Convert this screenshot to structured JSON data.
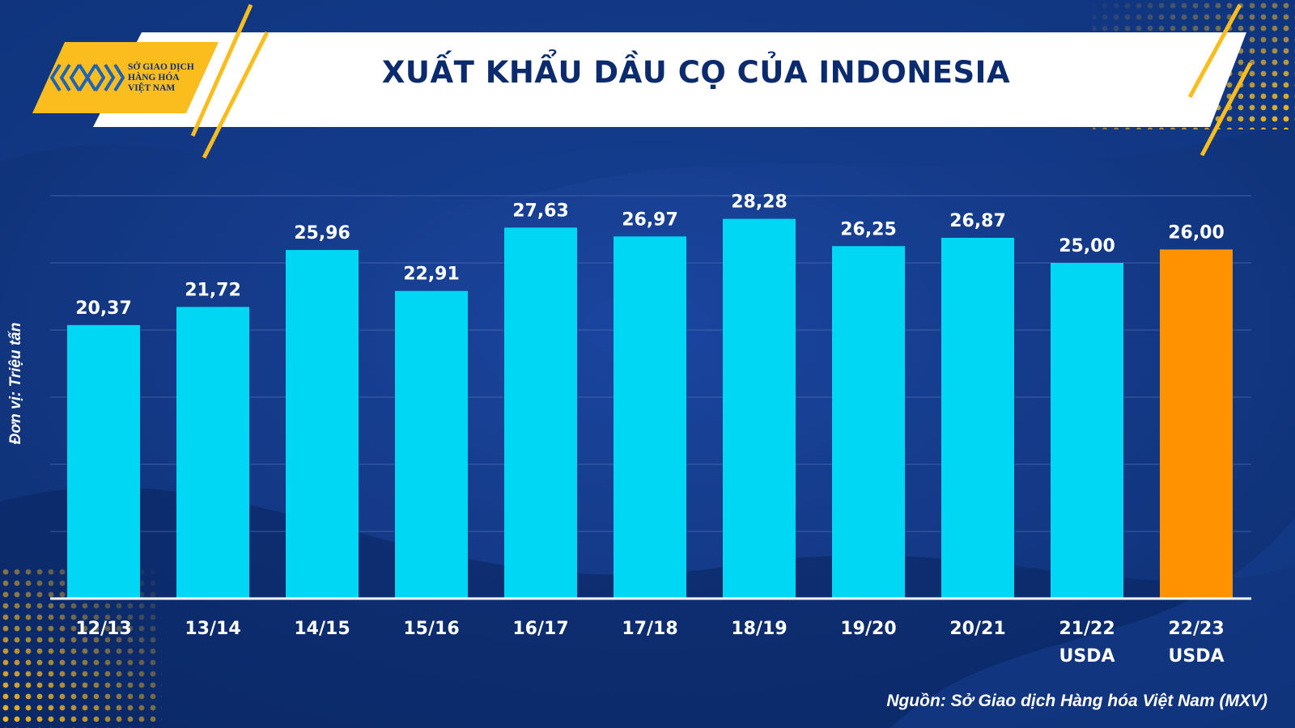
{
  "header": {
    "title": "XUẤT KHẨU DẦU CỌ CỦA INDONESIA",
    "logo_lines": [
      "SỞ GIAO DỊCH",
      "HÀNG HÓA",
      "VIỆT NAM"
    ]
  },
  "source": "Nguồn: Sở Giao dịch Hàng hóa Việt Nam (MXV)",
  "colors": {
    "background": "#0f3278",
    "bar": "#00d7f5",
    "bar_highlight": "#ff9200",
    "accent_yellow": "#fbbd1e",
    "title_text": "#0c2a6e"
  },
  "chart_data": {
    "type": "bar",
    "title": "XUẤT KHẨU DẦU CỌ CỦA INDONESIA",
    "xlabel": "",
    "ylabel": "Đơn vị: Triệu tấn",
    "categories": [
      "12/13",
      "13/14",
      "14/15",
      "15/16",
      "16/17",
      "17/18",
      "18/19",
      "19/20",
      "20/21",
      "21/22 USDA",
      "22/23 USDA"
    ],
    "category_lines": [
      [
        "12/13"
      ],
      [
        "13/14"
      ],
      [
        "14/15"
      ],
      [
        "15/16"
      ],
      [
        "16/17"
      ],
      [
        "17/18"
      ],
      [
        "18/19"
      ],
      [
        "19/20"
      ],
      [
        "20/21"
      ],
      [
        "21/22",
        "USDA"
      ],
      [
        "22/23",
        "USDA"
      ]
    ],
    "values": [
      20.37,
      21.72,
      25.96,
      22.91,
      27.63,
      26.97,
      28.28,
      26.25,
      26.87,
      25.0,
      26.0
    ],
    "value_labels": [
      "20,37",
      "21,72",
      "25,96",
      "22,91",
      "27,63",
      "26,97",
      "28,28",
      "26,25",
      "26,87",
      "25,00",
      "26,00"
    ],
    "highlight_index": 10,
    "ylim": [
      0,
      30
    ],
    "grid": true,
    "gridline_values": [
      5,
      10,
      15,
      20,
      25,
      30
    ],
    "y_tick_labels": "none",
    "legend": "none"
  }
}
